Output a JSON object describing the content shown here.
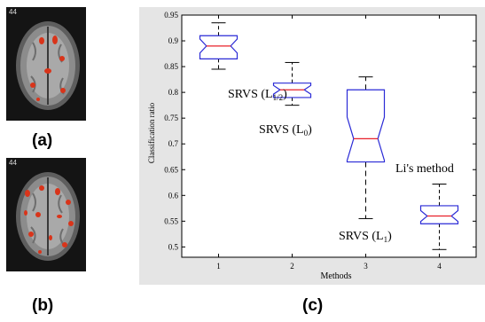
{
  "panels": [
    {
      "label": "(a)",
      "slice_number": "44"
    },
    {
      "label": "(b)",
      "slice_number": "44"
    },
    {
      "label": "(c)"
    }
  ],
  "colors": {
    "box": "#2a2ad6",
    "median": "#e8202a",
    "whisker": "#000000",
    "activation": "#d9341a",
    "panel_bg": "#e5e5e5"
  },
  "chart_data": {
    "type": "boxplot",
    "xlabel": "Methods",
    "ylabel": "Classification ratio",
    "xlim": [
      0.5,
      4.5
    ],
    "ylim": [
      0.48,
      0.95
    ],
    "x_ticks": [
      "1",
      "2",
      "3",
      "4"
    ],
    "y_ticks": [
      "0.5",
      "0.55",
      "0.6",
      "0.65",
      "0.7",
      "0.75",
      "0.8",
      "0.85",
      "0.9",
      "0.95"
    ],
    "notched": true,
    "grid": false,
    "boxes": [
      {
        "category": "1",
        "label": "SRVS (L1/2)",
        "whisker_low": 0.845,
        "q1": 0.865,
        "median": 0.89,
        "q3": 0.91,
        "whisker_high": 0.935
      },
      {
        "category": "2",
        "label": "SRVS (L0)",
        "whisker_low": 0.775,
        "q1": 0.79,
        "median": 0.805,
        "q3": 0.818,
        "whisker_high": 0.858
      },
      {
        "category": "3",
        "label": "SRVS (L1)",
        "whisker_low": 0.555,
        "q1": 0.665,
        "median": 0.71,
        "q3": 0.805,
        "whisker_high": 0.83
      },
      {
        "category": "4",
        "label": "Li's method",
        "whisker_low": 0.495,
        "q1": 0.545,
        "median": 0.56,
        "q3": 0.58,
        "whisker_high": 0.622
      }
    ]
  }
}
